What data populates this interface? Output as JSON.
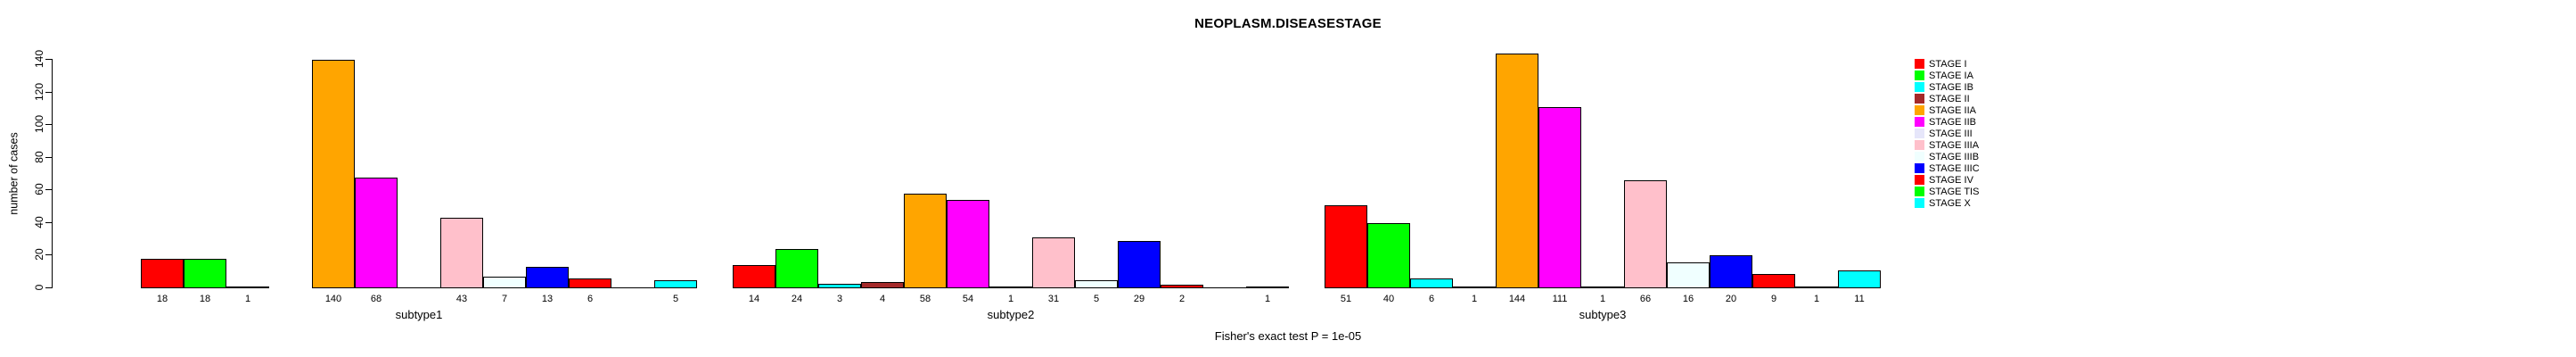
{
  "title": "NEOPLASM.DISEASESTAGE",
  "footer": "Fisher's exact test P = 1e-05",
  "chart_data": {
    "type": "bar",
    "title": "NEOPLASM.DISEASESTAGE",
    "xlabel": "",
    "ylabel": "number of cases",
    "ylim": [
      0,
      140
    ],
    "yticks": [
      0,
      20,
      40,
      60,
      80,
      100,
      120,
      140
    ],
    "grid": false,
    "legend_position": "right",
    "bar_value_labels": true,
    "annotation": "Fisher's exact test P = 1e-05",
    "categories": [
      "subtype1",
      "subtype2",
      "subtype3"
    ],
    "series": [
      {
        "name": "STAGE I",
        "color": "#FF0000",
        "values": [
          18,
          14,
          51
        ]
      },
      {
        "name": "STAGE IA",
        "color": "#00FF00",
        "values": [
          18,
          24,
          40
        ]
      },
      {
        "name": "STAGE IB",
        "color": "#00FFFF",
        "values": [
          1,
          3,
          6
        ]
      },
      {
        "name": "STAGE II",
        "color": "#A52A2A",
        "values": [
          null,
          4,
          1
        ]
      },
      {
        "name": "STAGE IIA",
        "color": "#FFA500",
        "values": [
          140,
          58,
          144
        ]
      },
      {
        "name": "STAGE IIB",
        "color": "#FF00FF",
        "values": [
          68,
          54,
          111
        ]
      },
      {
        "name": "STAGE III",
        "color": "#E6E6FA",
        "values": [
          0,
          1,
          1
        ]
      },
      {
        "name": "STAGE IIIA",
        "color": "#FFC0CB",
        "values": [
          43,
          31,
          66
        ]
      },
      {
        "name": "STAGE IIIB",
        "color": "#F0FFFF",
        "values": [
          7,
          5,
          16
        ]
      },
      {
        "name": "STAGE IIIC",
        "color": "#0000FF",
        "values": [
          13,
          29,
          20
        ]
      },
      {
        "name": "STAGE IV",
        "color": "#FF0000",
        "values": [
          6,
          2,
          9
        ]
      },
      {
        "name": "STAGE TIS",
        "color": "#00FF00",
        "values": [
          0,
          0,
          1
        ]
      },
      {
        "name": "STAGE X",
        "color": "#00FFFF",
        "values": [
          5,
          1,
          11
        ]
      }
    ]
  }
}
